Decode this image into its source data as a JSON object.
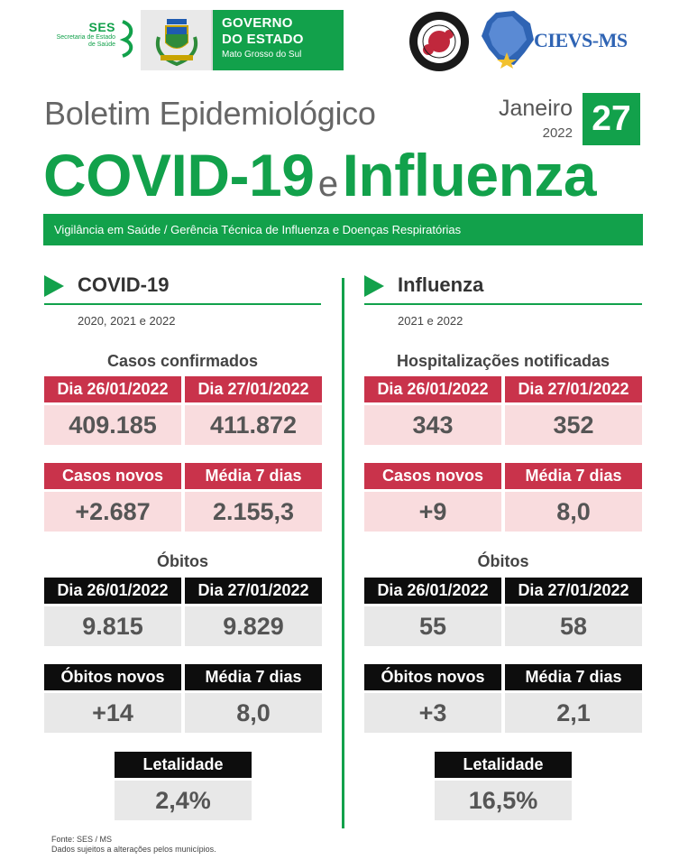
{
  "header": {
    "ses": {
      "title": "SES",
      "sub1": "Secretaria de Estado",
      "sub2": "de Saúde"
    },
    "governo": {
      "line1": "GOVERNO",
      "line2": "DO ESTADO",
      "line3": "Mato Grosso do Sul"
    },
    "cievs": {
      "text": "CIEVS-MS"
    }
  },
  "title": {
    "boletim": "Boletim Epidemiológico",
    "month": "Janeiro",
    "year": "2022",
    "day": "27",
    "covid": "COVID-19",
    "conj": "e",
    "influenza": "Influenza",
    "banner": "Vigilância em Saúde / Gerência Técnica de Influenza e Doenças Respiratórias"
  },
  "covid": {
    "title": "COVID-19",
    "years": "2020, 2021 e 2022",
    "cases_title": "Casos confirmados",
    "cases": {
      "h1": "Dia 26/01/2022",
      "h2": "Dia 27/01/2022",
      "v1": "409.185",
      "v2": "411.872"
    },
    "new_cases": {
      "h1": "Casos novos",
      "h2": "Média 7 dias",
      "v1": "+2.687",
      "v2": "2.155,3"
    },
    "deaths_title": "Óbitos",
    "deaths": {
      "h1": "Dia 26/01/2022",
      "h2": "Dia 27/01/2022",
      "v1": "9.815",
      "v2": "9.829"
    },
    "new_deaths": {
      "h1": "Óbitos novos",
      "h2": "Média 7 dias",
      "v1": "+14",
      "v2": "8,0"
    },
    "lethality": {
      "h": "Letalidade",
      "v": "2,4%"
    }
  },
  "influenza": {
    "title": "Influenza",
    "years": "2021 e 2022",
    "hosp_title": "Hospitalizações notificadas",
    "hosp": {
      "h1": "Dia 26/01/2022",
      "h2": "Dia 27/01/2022",
      "v1": "343",
      "v2": "352"
    },
    "new_cases": {
      "h1": "Casos novos",
      "h2": "Média 7 dias",
      "v1": "+9",
      "v2": "8,0"
    },
    "deaths_title": "Óbitos",
    "deaths": {
      "h1": "Dia 26/01/2022",
      "h2": "Dia 27/01/2022",
      "v1": "55",
      "v2": "58"
    },
    "new_deaths": {
      "h1": "Óbitos novos",
      "h2": "Média 7 dias",
      "v1": "+3",
      "v2": "2,1"
    },
    "lethality": {
      "h": "Letalidade",
      "v": "16,5%"
    }
  },
  "footer": {
    "source": "Fonte: SES / MS",
    "note": "Dados sujeitos a alterações pelos municípios."
  },
  "colors": {
    "green": "#12a14b",
    "red": "#c9334b",
    "pink": "#f9dcde",
    "black": "#0d0d0d",
    "grey": "#e8e8e8",
    "blue": "#2f64b4"
  },
  "icons": [
    "ses-logo-icon",
    "state-crest-icon",
    "virus-seal-icon",
    "ms-map-icon",
    "section-arrow-icon"
  ]
}
